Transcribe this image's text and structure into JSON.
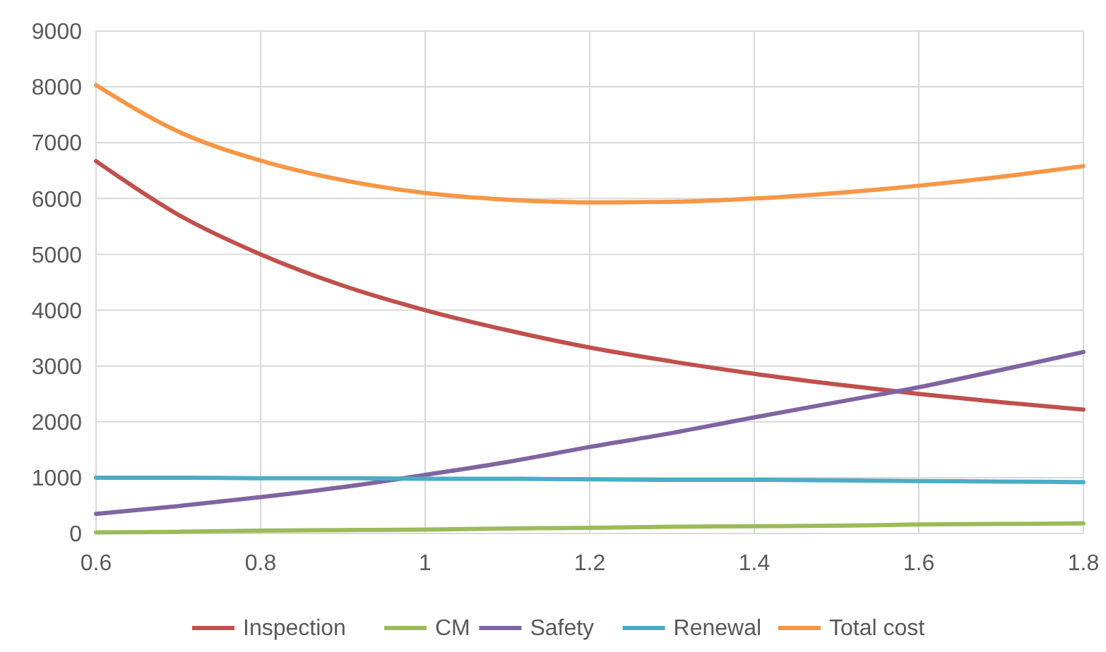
{
  "chart_data": {
    "type": "line",
    "x": [
      0.6,
      0.7,
      0.8,
      0.9,
      1.0,
      1.1,
      1.2,
      1.3,
      1.4,
      1.5,
      1.6,
      1.7,
      1.8
    ],
    "series": [
      {
        "name": "Inspection",
        "color": "#c0504d",
        "values": [
          6670,
          5710,
          5000,
          4440,
          4000,
          3640,
          3330,
          3080,
          2860,
          2670,
          2500,
          2350,
          2220
        ]
      },
      {
        "name": "CM",
        "color": "#9bbb59",
        "values": [
          20,
          30,
          50,
          60,
          70,
          90,
          100,
          120,
          130,
          140,
          160,
          170,
          180
        ]
      },
      {
        "name": "Safety",
        "color": "#8064a2",
        "values": [
          350,
          490,
          650,
          830,
          1050,
          1280,
          1550,
          1800,
          2080,
          2350,
          2620,
          2930,
          3250
        ]
      },
      {
        "name": "Renewal",
        "color": "#4bacc6",
        "values": [
          1000,
          1000,
          990,
          990,
          980,
          980,
          970,
          960,
          960,
          950,
          940,
          930,
          920
        ]
      },
      {
        "name": "Total cost",
        "color": "#f79646",
        "values": [
          8030,
          7200,
          6680,
          6330,
          6100,
          5980,
          5930,
          5940,
          6000,
          6100,
          6230,
          6390,
          6580
        ]
      }
    ],
    "xlim": [
      0.6,
      1.8
    ],
    "xticks": [
      0.6,
      0.8,
      1,
      1.2,
      1.4,
      1.6,
      1.8
    ],
    "ylim": [
      0,
      9000
    ],
    "yticks": [
      0,
      1000,
      2000,
      3000,
      4000,
      5000,
      6000,
      7000,
      8000,
      9000
    ],
    "grid": true,
    "legend": "bottom",
    "marker": "none",
    "line_style": "solid"
  }
}
